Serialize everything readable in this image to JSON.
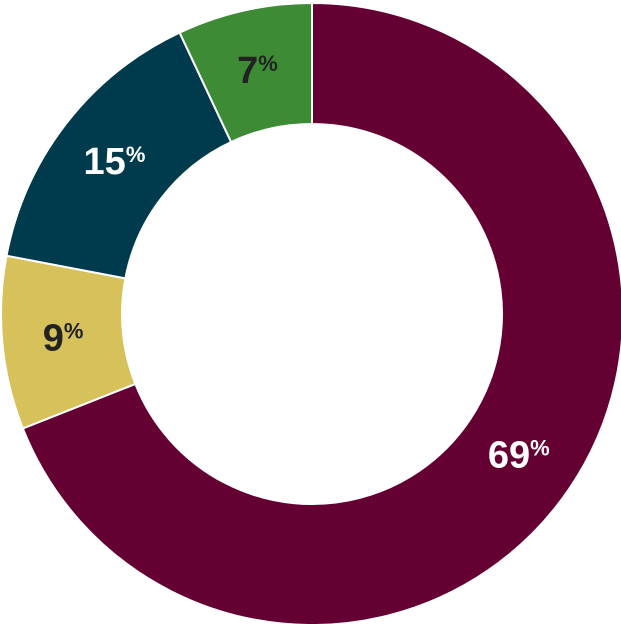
{
  "chart_data": {
    "type": "pie",
    "donut": true,
    "title": "",
    "categories": [
      "",
      "",
      "",
      ""
    ],
    "values": [
      69,
      9,
      15,
      7
    ],
    "labels": [
      "69",
      "9",
      "15",
      "7"
    ],
    "unit": "%",
    "colors": [
      "#650033",
      "#d6c15b",
      "#003a4d",
      "#3d8c35"
    ],
    "label_colors": [
      "#ffffff",
      "#222222",
      "#ffffff",
      "#222222"
    ],
    "start_angle_deg": 0,
    "direction": "clockwise",
    "legend": "none"
  }
}
